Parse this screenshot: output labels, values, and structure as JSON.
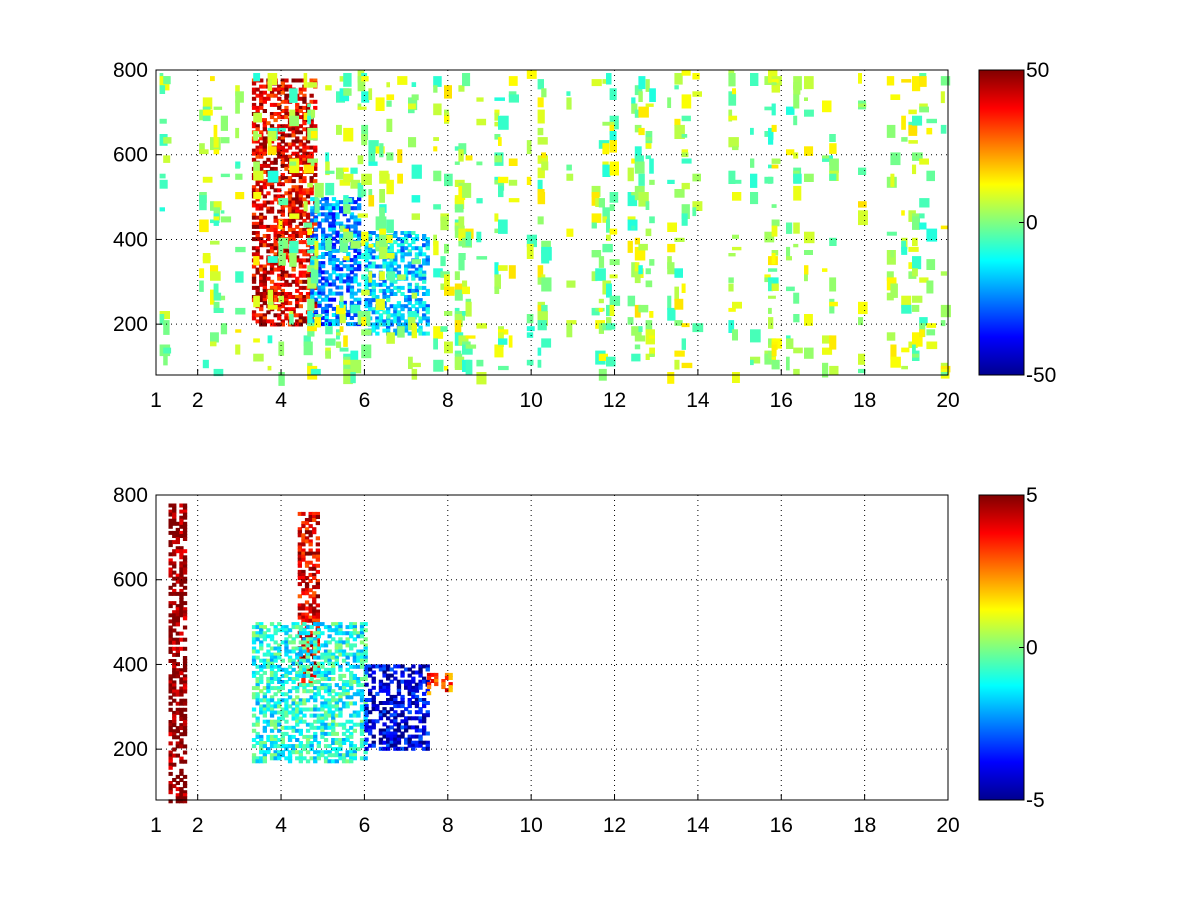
{
  "chart_data": [
    {
      "type": "heatmap",
      "title": "",
      "xlabel": "",
      "ylabel": "",
      "xlim": [
        1,
        20
      ],
      "ylim": [
        80,
        800
      ],
      "xticks": [
        1,
        2,
        4,
        6,
        8,
        10,
        12,
        14,
        16,
        18,
        20
      ],
      "xtick_labels": [
        "1",
        "2",
        "4",
        "6",
        "8",
        "10",
        "12",
        "14",
        "16",
        "18",
        "20"
      ],
      "yticks": [
        200,
        400,
        600,
        800
      ],
      "ytick_labels": [
        "200",
        "400",
        "600",
        "800"
      ],
      "grid": true,
      "colormap": "jet",
      "clim": [
        -50,
        50
      ],
      "colorbar_ticks": [
        -50,
        0,
        50
      ],
      "colorbar_labels": [
        "-50",
        "0",
        "50"
      ],
      "regions": [
        {
          "feature": "positive ridge",
          "x": [
            3.3,
            4.8
          ],
          "y": [
            200,
            780
          ],
          "value": 40
        },
        {
          "feature": "negative band",
          "x": [
            4.7,
            5.9
          ],
          "y": [
            200,
            500
          ],
          "value": -25
        },
        {
          "feature": "negative cluster",
          "x": [
            6.0,
            7.5
          ],
          "y": [
            180,
            420
          ],
          "value": -18
        },
        {
          "feature": "low-level noise",
          "x": [
            1.0,
            20.0
          ],
          "y": [
            80,
            800
          ],
          "value": 3
        }
      ]
    },
    {
      "type": "heatmap",
      "title": "",
      "xlabel": "",
      "ylabel": "",
      "xlim": [
        1,
        20
      ],
      "ylim": [
        80,
        800
      ],
      "xticks": [
        1,
        2,
        4,
        6,
        8,
        10,
        12,
        14,
        16,
        18,
        20
      ],
      "xtick_labels": [
        "1",
        "2",
        "4",
        "6",
        "8",
        "10",
        "12",
        "14",
        "16",
        "18",
        "20"
      ],
      "yticks": [
        200,
        400,
        600,
        800
      ],
      "ytick_labels": [
        "200",
        "400",
        "600",
        "800"
      ],
      "grid": true,
      "colormap": "jet",
      "clim": [
        -5,
        5
      ],
      "colorbar_ticks": [
        -5,
        0,
        5
      ],
      "colorbar_labels": [
        "-5",
        "0",
        "5"
      ],
      "regions": [
        {
          "feature": "positive ridge",
          "x": [
            4.4,
            4.9
          ],
          "y": [
            350,
            760
          ],
          "value": 4
        },
        {
          "feature": "mixed cluster",
          "x": [
            3.3,
            6.0
          ],
          "y": [
            170,
            500
          ],
          "value": -1
        },
        {
          "feature": "negative cluster",
          "x": [
            6.0,
            7.5
          ],
          "y": [
            200,
            400
          ],
          "value": -4
        },
        {
          "feature": "positive spot",
          "x": [
            7.5,
            8.1
          ],
          "y": [
            330,
            380
          ],
          "value": 3
        },
        {
          "feature": "vertical trace",
          "x": [
            1.3,
            1.7
          ],
          "y": [
            80,
            780
          ],
          "value": 5
        }
      ]
    }
  ]
}
